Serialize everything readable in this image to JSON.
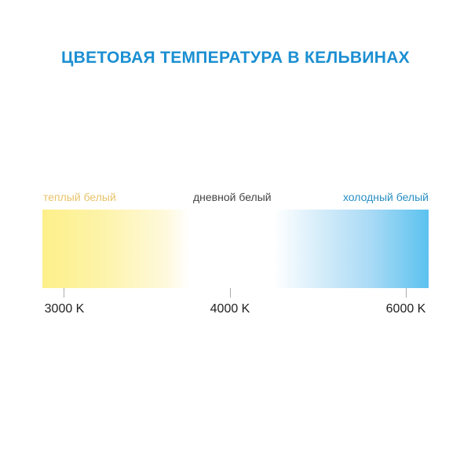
{
  "title": "ЦВЕТОВАЯ ТЕМПЕРАТУРА В КЕЛЬВИНАХ",
  "zones": {
    "warm": "теплый белый",
    "day": "дневной белый",
    "cold": "холодный белый"
  },
  "scale": [
    "3000 K",
    "4000 K",
    "6000 K"
  ],
  "colors": {
    "title": "#1b8fd2",
    "warm": "#fdf08a",
    "cold": "#5bc2ef"
  }
}
